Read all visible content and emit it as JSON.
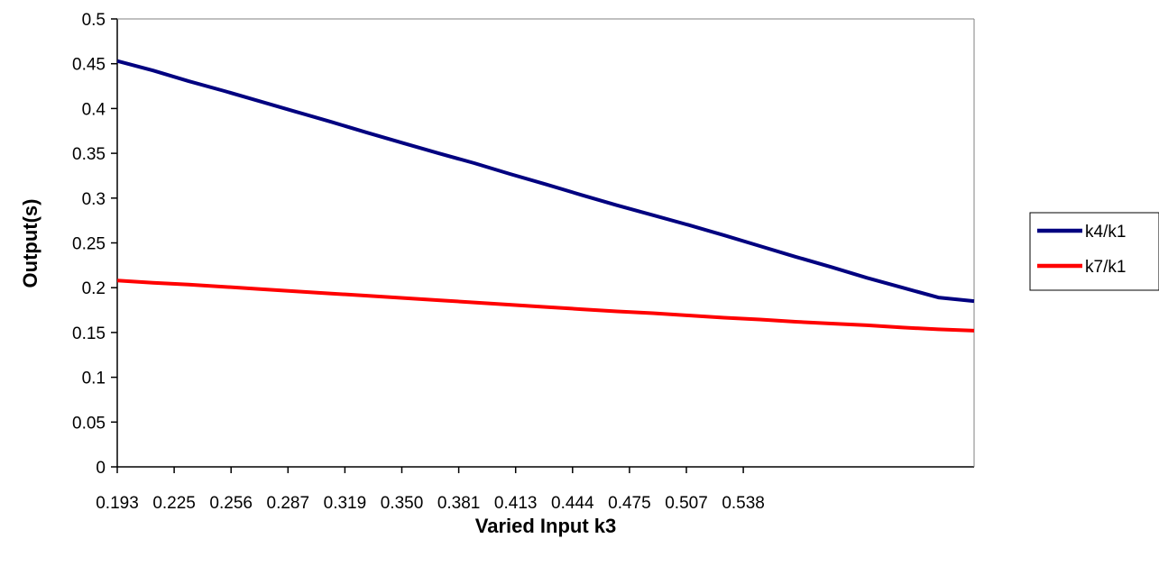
{
  "chart_data": {
    "type": "line",
    "xlabel": "Varied Input k3",
    "ylabel": "Output(s)",
    "x_tick_labels": [
      "0.193",
      "0.225",
      "0.256",
      "0.287",
      "0.319",
      "0.350",
      "0.381",
      "0.413",
      "0.444",
      "0.475",
      "0.507",
      "0.538"
    ],
    "y_tick_labels": [
      "0",
      "0.05",
      "0.1",
      "0.15",
      "0.2",
      "0.25",
      "0.3",
      "0.35",
      "0.4",
      "0.45",
      "0.5"
    ],
    "ylim": [
      0,
      0.5
    ],
    "grid": false,
    "legend_position": "right",
    "series": [
      {
        "name": "k4/k1",
        "color": "#000080",
        "values": [
          0.453,
          0.4425,
          0.4305,
          0.4195,
          0.408,
          0.3965,
          0.385,
          0.373,
          0.3615,
          0.35,
          0.339,
          0.327,
          0.3155,
          0.3035,
          0.292,
          0.281,
          0.27,
          0.2585,
          0.2465,
          0.2345,
          0.223,
          0.211,
          0.2,
          0.189,
          0.185
        ]
      },
      {
        "name": "k7/k1",
        "color": "#ff0000",
        "values": [
          0.208,
          0.2055,
          0.2035,
          0.201,
          0.1985,
          0.196,
          0.1935,
          0.191,
          0.1885,
          0.186,
          0.1835,
          0.181,
          0.1785,
          0.176,
          0.1735,
          0.1715,
          0.169,
          0.1665,
          0.1645,
          0.162,
          0.16,
          0.158,
          0.1555,
          0.1535,
          0.152
        ]
      }
    ]
  }
}
